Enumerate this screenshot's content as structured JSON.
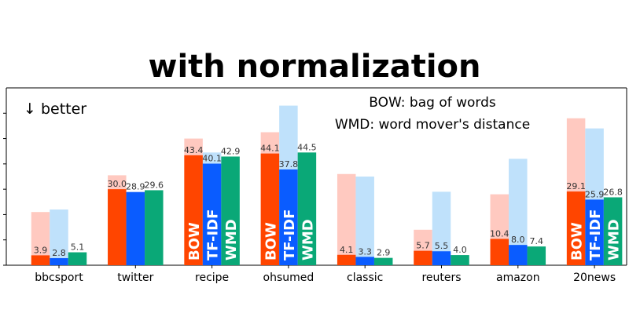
{
  "chart_data": {
    "type": "bar",
    "title": "with normalization",
    "note": "↓ better",
    "legend_lines": [
      "BOW: bag of words",
      "WMD: word mover's distance"
    ],
    "categories": [
      "bbcsport",
      "twitter",
      "recipe",
      "ohsumed",
      "classic",
      "reuters",
      "amazon",
      "20news"
    ],
    "ylim": [
      0,
      70
    ],
    "series": [
      {
        "name": "BOW",
        "color": "#ff4500",
        "values": [
          3.9,
          30.0,
          43.4,
          44.1,
          4.1,
          5.7,
          10.4,
          29.1
        ],
        "labels": [
          "3.9",
          "30.0",
          "43.4",
          "44.1",
          "4.1",
          "5.7",
          "10.4",
          "29.1"
        ],
        "ghost_color": "#ffc9c0",
        "ghost_values": [
          21,
          35.5,
          50,
          52.5,
          36,
          14,
          28,
          58
        ]
      },
      {
        "name": "TF-IDF",
        "color": "#0a5cff",
        "values": [
          2.8,
          28.9,
          40.1,
          37.8,
          3.3,
          5.5,
          8.0,
          25.9
        ],
        "labels": [
          "2.8",
          "28.9",
          "40.1",
          "37.8",
          "3.3",
          "5.5",
          "8.0",
          "25.9"
        ],
        "ghost_color": "#bfe1fb",
        "ghost_values": [
          22,
          0,
          44.5,
          63,
          35,
          29,
          42,
          54
        ]
      },
      {
        "name": "WMD",
        "color": "#0aa877",
        "values": [
          5.1,
          29.6,
          42.9,
          44.5,
          2.9,
          4.0,
          7.4,
          26.8
        ],
        "labels": [
          "5.1",
          "29.6",
          "42.9",
          "44.5",
          "2.9",
          "4.0",
          "7.4",
          "26.8"
        ]
      }
    ],
    "in_bar_labels_category": [
      "recipe",
      "ohsumed",
      "20news"
    ]
  }
}
